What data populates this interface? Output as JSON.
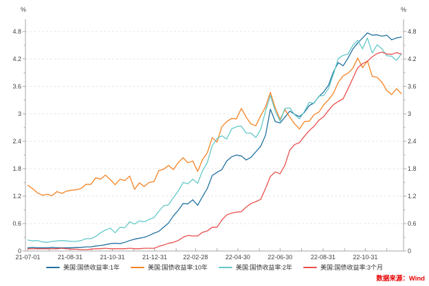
{
  "chart_data": {
    "type": "line",
    "title": "",
    "y_unit": "%",
    "ylim": [
      0,
      4.8
    ],
    "grid": "dashed-horizontal-major",
    "legend_position": "bottom",
    "axis_color": "#a6a6a6",
    "grid_color": "#e4e4e4",
    "label_color": "#404040",
    "y_ticks": [
      {
        "v": 4.8,
        "label": "4.8"
      },
      {
        "v": 4.2,
        "label": "4.2"
      },
      {
        "v": 3.6,
        "label": "3.6"
      },
      {
        "v": 3.0,
        "label": "3"
      },
      {
        "v": 2.4,
        "label": "2.4"
      },
      {
        "v": 1.8,
        "label": "1.8"
      },
      {
        "v": 1.2,
        "label": "1.2"
      },
      {
        "v": 0.6,
        "label": "0.6"
      },
      {
        "v": 0.0,
        "label": "0"
      }
    ],
    "x_ticks": [
      {
        "day": 0,
        "label": "21-07-01"
      },
      {
        "day": 61,
        "label": "21-08-31"
      },
      {
        "day": 122,
        "label": "21-10-31"
      },
      {
        "day": 183,
        "label": "21-12-31"
      },
      {
        "day": 242,
        "label": "22-02-28"
      },
      {
        "day": 303,
        "label": "22-04-30"
      },
      {
        "day": 364,
        "label": "22-06-30"
      },
      {
        "day": 426,
        "label": "22-08-31"
      },
      {
        "day": 487,
        "label": "22-10-31"
      }
    ],
    "x_minor_tick_days": [
      31,
      92,
      153,
      214,
      273,
      334,
      395,
      457,
      518
    ],
    "x_days": [
      0,
      7,
      14,
      21,
      28,
      35,
      42,
      49,
      56,
      63,
      70,
      77,
      84,
      91,
      98,
      105,
      112,
      119,
      126,
      133,
      140,
      147,
      154,
      161,
      168,
      175,
      182,
      189,
      196,
      203,
      210,
      217,
      224,
      231,
      238,
      245,
      252,
      259,
      266,
      273,
      280,
      287,
      294,
      301,
      308,
      315,
      322,
      329,
      336,
      343,
      350,
      357,
      364,
      371,
      378,
      385,
      392,
      399,
      406,
      413,
      420,
      427,
      434,
      441,
      448,
      455,
      462,
      469,
      476,
      483,
      490,
      497,
      504,
      511,
      518,
      525,
      532,
      539
    ],
    "series": [
      {
        "name": "美国:国债收益率:1年",
        "color": "#20709f",
        "values": [
          0.07,
          0.08,
          0.07,
          0.07,
          0.07,
          0.08,
          0.07,
          0.07,
          0.07,
          0.07,
          0.08,
          0.08,
          0.09,
          0.09,
          0.11,
          0.12,
          0.14,
          0.16,
          0.17,
          0.16,
          0.19,
          0.23,
          0.26,
          0.28,
          0.3,
          0.34,
          0.39,
          0.43,
          0.52,
          0.61,
          0.77,
          0.89,
          1.04,
          1.03,
          1.12,
          1.0,
          1.19,
          1.37,
          1.65,
          1.72,
          1.78,
          1.97,
          2.06,
          2.1,
          2.08,
          1.99,
          2.05,
          2.17,
          2.29,
          2.53,
          3.1,
          2.83,
          2.8,
          2.93,
          3.06,
          2.99,
          2.94,
          3.03,
          3.18,
          3.24,
          3.38,
          3.48,
          3.63,
          3.92,
          4.12,
          4.05,
          4.22,
          4.42,
          4.55,
          4.66,
          4.77,
          4.72,
          4.73,
          4.7,
          4.72,
          4.62,
          4.66,
          4.68
        ]
      },
      {
        "name": "美国:国债收益率:10年",
        "color": "#f48222",
        "values": [
          1.44,
          1.36,
          1.27,
          1.22,
          1.24,
          1.21,
          1.3,
          1.26,
          1.31,
          1.33,
          1.34,
          1.37,
          1.46,
          1.46,
          1.6,
          1.57,
          1.66,
          1.56,
          1.45,
          1.57,
          1.54,
          1.64,
          1.35,
          1.49,
          1.41,
          1.5,
          1.52,
          1.76,
          1.79,
          1.87,
          1.78,
          1.93,
          2.04,
          1.93,
          1.97,
          1.74,
          2.0,
          2.15,
          2.48,
          2.38,
          2.72,
          2.83,
          2.9,
          2.89,
          3.12,
          2.93,
          2.78,
          2.74,
          2.96,
          3.15,
          3.47,
          3.13,
          2.88,
          3.09,
          2.93,
          2.78,
          2.67,
          2.83,
          2.84,
          2.98,
          3.04,
          3.2,
          3.31,
          3.45,
          3.69,
          3.83,
          3.89,
          4.0,
          4.22,
          4.01,
          4.16,
          3.82,
          3.8,
          3.69,
          3.51,
          3.42,
          3.55,
          3.44
        ]
      },
      {
        "name": "美国:国债收益率:2年",
        "color": "#62c8c8",
        "values": [
          0.24,
          0.22,
          0.23,
          0.2,
          0.19,
          0.21,
          0.22,
          0.23,
          0.22,
          0.21,
          0.21,
          0.23,
          0.27,
          0.27,
          0.32,
          0.4,
          0.46,
          0.5,
          0.4,
          0.52,
          0.51,
          0.64,
          0.59,
          0.66,
          0.64,
          0.69,
          0.73,
          0.87,
          0.99,
          1.01,
          1.17,
          1.31,
          1.5,
          1.47,
          1.57,
          1.48,
          1.75,
          1.94,
          2.3,
          2.46,
          2.52,
          2.45,
          2.67,
          2.72,
          2.73,
          2.58,
          2.58,
          2.48,
          2.66,
          3.06,
          3.4,
          3.06,
          2.84,
          3.12,
          3.13,
          2.98,
          2.89,
          3.05,
          3.25,
          3.23,
          3.39,
          3.4,
          3.56,
          3.87,
          4.21,
          4.28,
          4.31,
          4.5,
          4.61,
          4.42,
          4.66,
          4.33,
          4.51,
          4.42,
          4.27,
          4.26,
          4.17,
          4.31
        ]
      },
      {
        "name": "美国:国债收益率:3个月",
        "color": "#ea4d4a",
        "values": [
          0.05,
          0.05,
          0.05,
          0.05,
          0.05,
          0.05,
          0.05,
          0.06,
          0.05,
          0.04,
          0.04,
          0.03,
          0.03,
          0.04,
          0.05,
          0.05,
          0.06,
          0.05,
          0.05,
          0.05,
          0.05,
          0.06,
          0.05,
          0.05,
          0.06,
          0.06,
          0.06,
          0.1,
          0.13,
          0.17,
          0.19,
          0.23,
          0.3,
          0.34,
          0.33,
          0.33,
          0.41,
          0.44,
          0.52,
          0.52,
          0.68,
          0.79,
          0.83,
          0.85,
          0.86,
          0.96,
          1.04,
          1.08,
          1.13,
          1.37,
          1.63,
          1.73,
          1.69,
          1.88,
          2.21,
          2.33,
          2.37,
          2.51,
          2.63,
          2.73,
          2.86,
          2.94,
          3.08,
          3.2,
          3.27,
          3.33,
          3.55,
          3.78,
          4.01,
          4.1,
          4.15,
          4.25,
          4.32,
          4.35,
          4.31,
          4.3,
          4.34,
          4.31
        ]
      }
    ]
  },
  "source": {
    "text": "数据来源：Wind",
    "color": "#e60000"
  }
}
